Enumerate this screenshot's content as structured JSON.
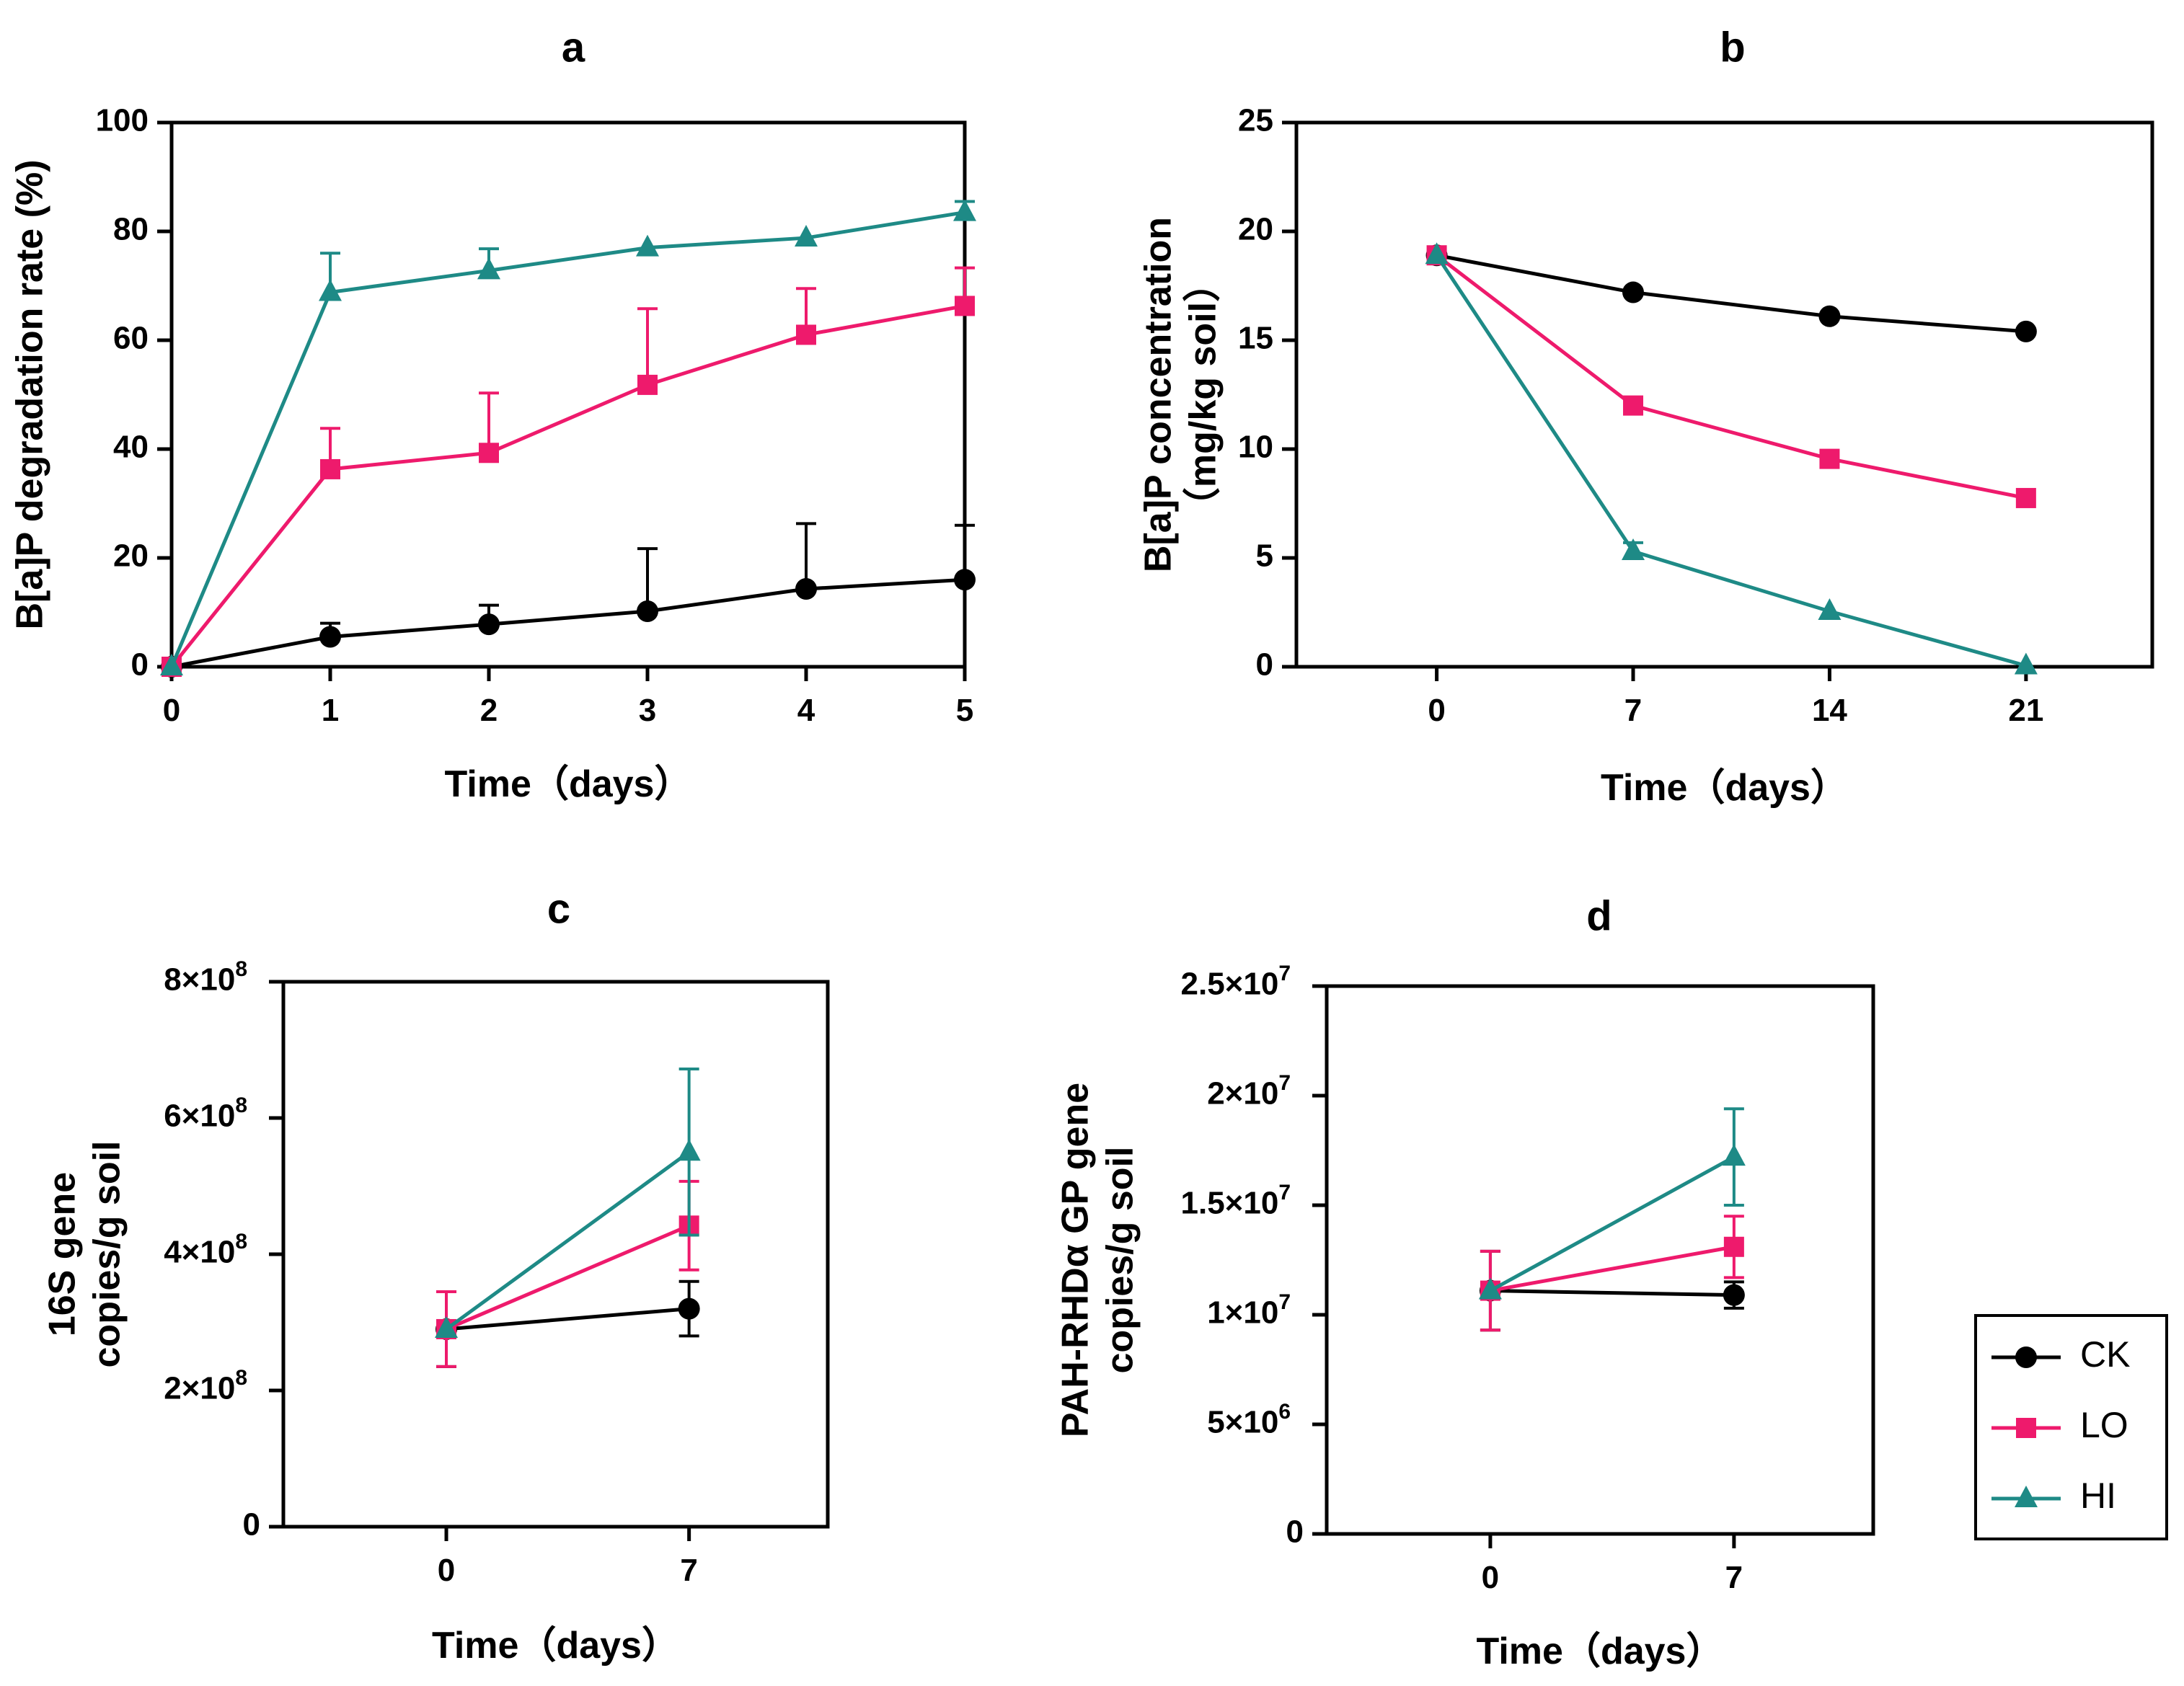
{
  "colors": {
    "CK": "#000000",
    "LO": "#ee1a6c",
    "HI": "#1e8a86"
  },
  "legend": [
    {
      "name": "CK",
      "marker": "circle"
    },
    {
      "name": "LO",
      "marker": "square"
    },
    {
      "name": "HI",
      "marker": "triangle"
    }
  ],
  "chart_data": [
    {
      "panel": "a",
      "type": "line",
      "title": "a",
      "xlabel": "Time（days）",
      "ylabel": [
        "B[a]P degradation rate (%)"
      ],
      "x": [
        0,
        1,
        2,
        3,
        4,
        5
      ],
      "xlim": [
        0,
        5
      ],
      "ylim": [
        0,
        100
      ],
      "xticks": [
        "0",
        "1",
        "2",
        "3",
        "4",
        "5"
      ],
      "yticks": [
        {
          "v": 0,
          "label": "0"
        },
        {
          "v": 20,
          "label": "20"
        },
        {
          "v": 40,
          "label": "40"
        },
        {
          "v": 60,
          "label": "60"
        },
        {
          "v": 80,
          "label": "80"
        },
        {
          "v": 100,
          "label": "100"
        }
      ],
      "series": [
        {
          "name": "CK",
          "values": [
            0,
            5.5,
            7.8,
            10.2,
            14.3,
            16.0
          ],
          "err": [
            0,
            2.5,
            3.5,
            11.5,
            12.0,
            10.0
          ]
        },
        {
          "name": "LO",
          "values": [
            0,
            36.3,
            39.3,
            51.8,
            61.0,
            66.3
          ],
          "err": [
            0,
            7.5,
            11.0,
            14.0,
            8.5,
            7.0
          ]
        },
        {
          "name": "HI",
          "values": [
            0,
            68.8,
            72.8,
            77.0,
            78.8,
            83.5
          ],
          "err": [
            0,
            7.2,
            4.0,
            0,
            0,
            2.0
          ]
        }
      ]
    },
    {
      "panel": "b",
      "type": "line",
      "title": "b",
      "xlabel": "Time（days）",
      "ylabel": [
        "B[a]P concentration",
        "（mg/kg soil）"
      ],
      "x": [
        0,
        7,
        14,
        21
      ],
      "xlim": [
        -5,
        25.5
      ],
      "ylim": [
        0,
        25
      ],
      "xticks": [
        "0",
        "7",
        "14",
        "21"
      ],
      "yticks": [
        {
          "v": 0,
          "label": "0"
        },
        {
          "v": 5,
          "label": "5"
        },
        {
          "v": 10,
          "label": "10"
        },
        {
          "v": 15,
          "label": "15"
        },
        {
          "v": 20,
          "label": "20"
        },
        {
          "v": 25,
          "label": "25"
        }
      ],
      "series": [
        {
          "name": "CK",
          "values": [
            18.9,
            17.2,
            16.1,
            15.4
          ],
          "err": [
            0,
            0,
            0,
            0
          ]
        },
        {
          "name": "LO",
          "values": [
            18.9,
            12.0,
            9.55,
            7.75
          ],
          "err": [
            0,
            0,
            0,
            0
          ]
        },
        {
          "name": "HI",
          "values": [
            18.9,
            5.3,
            2.55,
            0.05
          ],
          "err": [
            0,
            0.4,
            0,
            0
          ]
        }
      ]
    },
    {
      "panel": "c",
      "type": "line",
      "title": "c",
      "xlabel": "Time（days）",
      "ylabel": [
        "16S gene",
        "copies/g soil"
      ],
      "x": [
        0,
        7
      ],
      "xlim": [
        -4.7,
        11
      ],
      "ylim": [
        0,
        8
      ],
      "unit_note": "values in units of 10^8 copies/g soil",
      "xticks": [
        "0",
        "7"
      ],
      "yticks": [
        {
          "v": 0,
          "label": "0"
        },
        {
          "v": 2,
          "label": "2×10",
          "exp": "8"
        },
        {
          "v": 4,
          "label": "4×10",
          "exp": "8"
        },
        {
          "v": 6,
          "label": "6×10",
          "exp": "8"
        },
        {
          "v": 8,
          "label": "8×10",
          "exp": "8"
        }
      ],
      "series": [
        {
          "name": "CK",
          "values": [
            2.9,
            3.2
          ],
          "err": [
            0.55,
            0.4
          ]
        },
        {
          "name": "LO",
          "values": [
            2.9,
            4.42
          ],
          "err": [
            0.55,
            0.65
          ]
        },
        {
          "name": "HI",
          "values": [
            2.9,
            5.5
          ],
          "err": [
            0,
            1.22
          ]
        }
      ]
    },
    {
      "panel": "d",
      "type": "line",
      "title": "d",
      "xlabel": "Time（days）",
      "ylabel": [
        "PAH-RHDα GP gene",
        "copies/g soil"
      ],
      "x": [
        0,
        7
      ],
      "xlim": [
        -4.7,
        11
      ],
      "ylim": [
        0,
        25
      ],
      "unit_note": "values in units of 10^6 copies/g soil",
      "xticks": [
        "0",
        "7"
      ],
      "yticks": [
        {
          "v": 0,
          "label": "0"
        },
        {
          "v": 5,
          "label": "5×10",
          "exp": "6"
        },
        {
          "v": 10,
          "label": "1×10",
          "exp": "7"
        },
        {
          "v": 15,
          "label": "1.5×10",
          "exp": "7"
        },
        {
          "v": 20,
          "label": "2×10",
          "exp": "7"
        },
        {
          "v": 25,
          "label": "2.5×10",
          "exp": "7"
        }
      ],
      "series": [
        {
          "name": "CK",
          "values": [
            11.1,
            10.9
          ],
          "err": [
            1.8,
            0.6
          ]
        },
        {
          "name": "LO",
          "values": [
            11.1,
            13.1
          ],
          "err": [
            1.8,
            1.4
          ]
        },
        {
          "name": "HI",
          "values": [
            11.1,
            17.2
          ],
          "err": [
            0,
            2.2
          ]
        }
      ]
    }
  ]
}
